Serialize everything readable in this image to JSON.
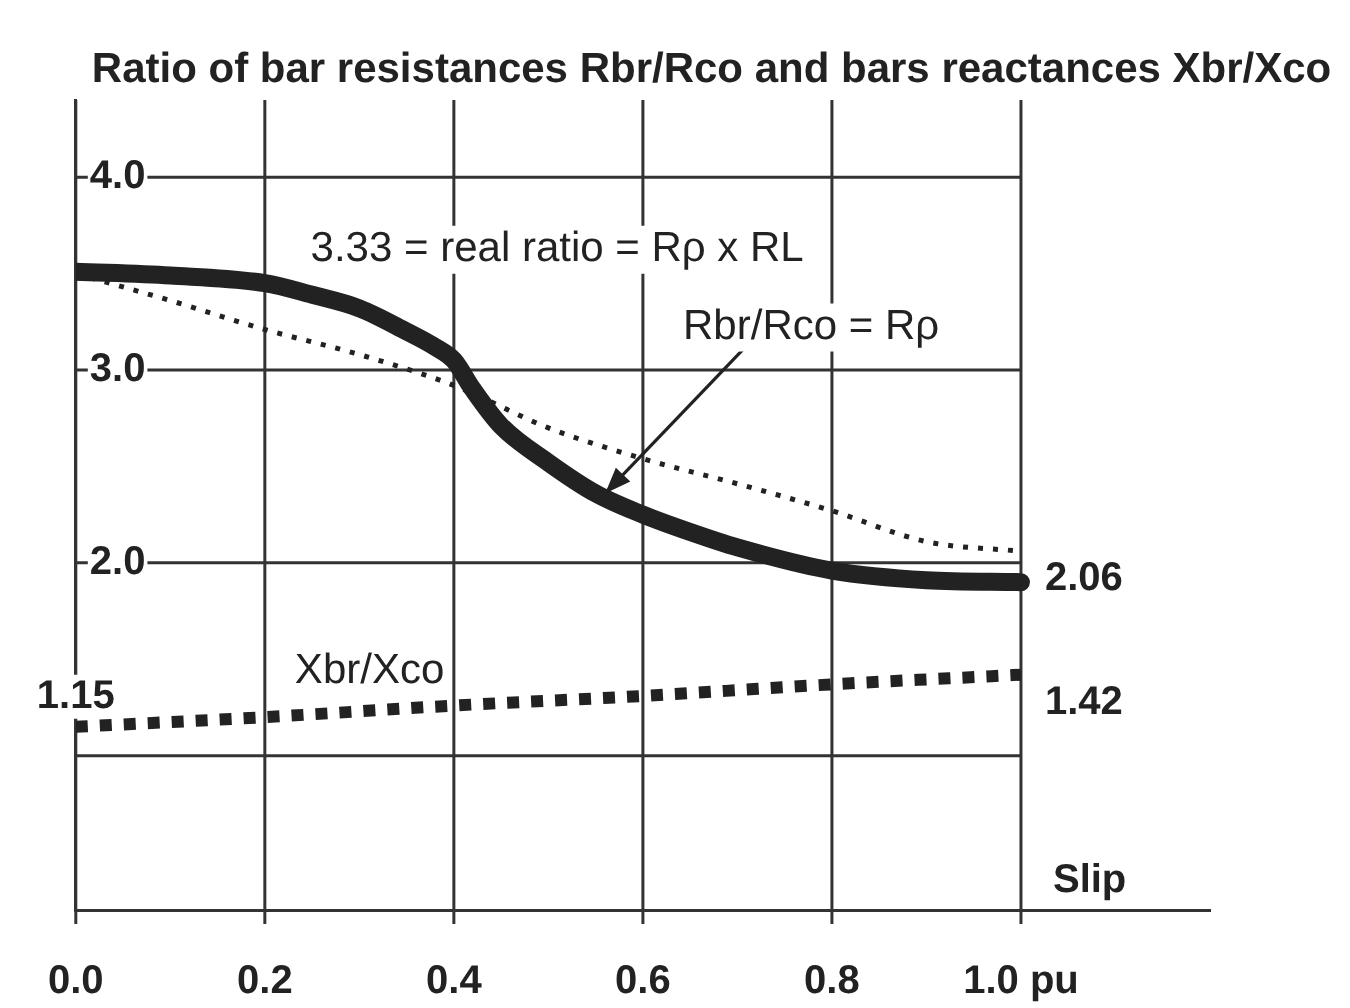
{
  "chart_data": {
    "type": "line",
    "title": "Ratio of bar resistances Rbr/Rco and bars reactances Xbr/Xco",
    "xlabel": "Slip",
    "xlim": [
      0,
      1.2
    ],
    "xticks": [
      {
        "value": 0,
        "label": "0.0"
      },
      0.2,
      0.4,
      0.6,
      0.8,
      {
        "value": 1,
        "label": "1.0 pu"
      }
    ],
    "ylim": [
      0.2,
      4.4
    ],
    "yticks": [
      {
        "value": 1,
        "label": null
      },
      {
        "value": 2,
        "label": "2.0"
      },
      {
        "value": 3,
        "label": "3.0"
      },
      {
        "value": 4,
        "label": "4.0"
      }
    ],
    "grid": true,
    "marker": "none",
    "series": [
      {
        "color": "#222222",
        "line_style": "solid",
        "x": [
          0,
          0.1,
          0.2,
          0.25,
          0.3,
          0.35,
          0.38,
          0.4,
          0.42,
          0.45,
          0.5,
          0.55,
          0.6,
          0.65,
          0.7,
          0.8,
          0.9,
          1.0
        ],
        "values": [
          3.51,
          3.49,
          3.45,
          3.39,
          3.32,
          3.2,
          3.12,
          3.05,
          2.9,
          2.71,
          2.52,
          2.36,
          2.25,
          2.16,
          2.08,
          1.96,
          1.91,
          1.9
        ]
      },
      {
        "color": "#222222",
        "line_style": "dotted",
        "x": [
          0,
          0.1,
          0.2,
          0.3,
          0.4,
          0.5,
          0.6,
          0.7,
          0.8,
          0.9,
          1.0
        ],
        "values": [
          3.5,
          3.36,
          3.21,
          3.08,
          2.92,
          2.7,
          2.54,
          2.41,
          2.27,
          2.11,
          2.06
        ],
        "value_labels": [
          null,
          null,
          null,
          null,
          null,
          null,
          null,
          null,
          null,
          null,
          "2.06"
        ]
      },
      {
        "color": "#222222",
        "line_style": "dashed",
        "x": [
          0,
          0.2,
          0.4,
          0.6,
          0.8,
          1.0
        ],
        "values": [
          1.15,
          1.2,
          1.26,
          1.31,
          1.37,
          1.42
        ],
        "value_labels": [
          "1.15",
          null,
          null,
          null,
          null,
          "1.42"
        ]
      }
    ],
    "annotations": [
      "3.33 = real ratio = Rρ x RL",
      {
        "text": "Rbr/Rco = Rρ",
        "x": 0.56,
        "y": 2.36
      },
      "Xbr/Xco"
    ]
  }
}
